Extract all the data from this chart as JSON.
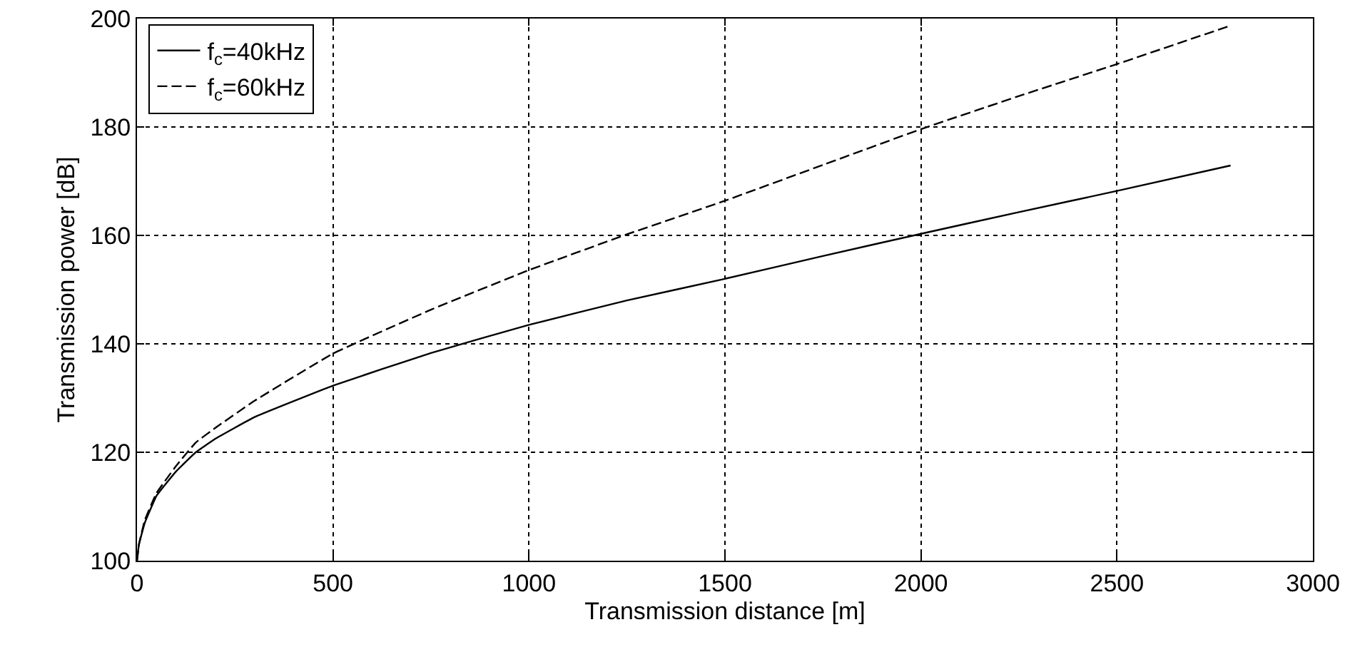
{
  "chart_data": {
    "type": "line",
    "xlabel": "Transmission distance [m]",
    "ylabel": "Transmission power [dB]",
    "x": [
      0,
      5,
      20,
      50,
      100,
      150,
      200,
      300,
      500,
      750,
      1000,
      1250,
      1500,
      1750,
      2000,
      2250,
      2500,
      2790
    ],
    "series": [
      {
        "name": "f$_{c}$=40kHz",
        "color": "#000000",
        "line_style": "solid",
        "values": [
          100,
          103,
          107,
          112,
          116.5,
          120,
          122.5,
          126.5,
          132.3,
          138.3,
          143.5,
          148,
          152,
          156.2,
          160.3,
          164.3,
          168.2,
          172.9
        ]
      },
      {
        "name": "f$_{c}$=60kHz",
        "color": "#000000",
        "line_style": "dashed",
        "values": [
          100,
          103,
          107.5,
          112.5,
          117.5,
          121.8,
          124.5,
          129.5,
          138.2,
          146.3,
          153.6,
          160.2,
          166.4,
          173,
          179.6,
          185.7,
          191.6,
          198.7
        ]
      }
    ],
    "xlim": [
      0,
      3000
    ],
    "xticks": [
      0,
      500,
      1000,
      1500,
      2000,
      2500,
      3000
    ],
    "ylim": [
      100,
      200
    ],
    "yticks": [
      100,
      120,
      140,
      160,
      180,
      200
    ],
    "grid": true,
    "legend": "top left",
    "marker": "none"
  }
}
